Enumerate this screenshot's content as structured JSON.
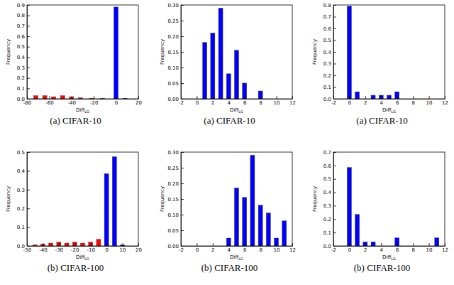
{
  "chart_data": [
    {
      "type": "bar",
      "title": "(a) CIFAR-10",
      "xlabel": "Diff",
      "xlabel_sub": "LG",
      "ylabel": "Frequency",
      "xlim": [
        -80,
        20
      ],
      "xticks": [
        -80,
        -60,
        -40,
        -20,
        0,
        20
      ],
      "ylim": [
        0,
        0.9
      ],
      "yticks": [
        {
          "value": 0,
          "label": "0.0"
        },
        {
          "value": 0.1,
          "label": "0.1"
        },
        {
          "value": 0.2,
          "label": "0.2"
        },
        {
          "value": 0.3,
          "label": "0.3"
        },
        {
          "value": 0.4,
          "label": "0.4"
        },
        {
          "value": 0.5,
          "label": "0.5"
        },
        {
          "value": 0.6,
          "label": "0.6"
        },
        {
          "value": 0.7,
          "label": "0.7"
        },
        {
          "value": 0.8,
          "label": "0.8"
        },
        {
          "value": 0.9,
          "label": "0.9"
        }
      ],
      "series": [
        {
          "color": "#ff0000",
          "x": [
            -72,
            -64,
            -56,
            -48,
            -40,
            -32,
            -22,
            -12
          ],
          "values": [
            0.03,
            0.03,
            0.02,
            0.03,
            0.02,
            0.01,
            0.005,
            0.005
          ]
        },
        {
          "color": "#0000ff",
          "x": [
            0,
            8
          ],
          "values": [
            0.88,
            0.005
          ]
        }
      ]
    },
    {
      "type": "bar",
      "title": "(a) CIFAR-10",
      "xlabel": "Diff",
      "xlabel_sub": "LG",
      "ylabel": "Frequency",
      "xlim": [
        -2,
        12
      ],
      "xticks": [
        -2,
        0,
        2,
        4,
        6,
        8,
        10,
        12
      ],
      "ylim": [
        0,
        0.3
      ],
      "yticks": [
        {
          "value": 0,
          "label": "0.00"
        },
        {
          "value": 0.05,
          "label": "0.05"
        },
        {
          "value": 0.1,
          "label": "0.10"
        },
        {
          "value": 0.15,
          "label": "0.15"
        },
        {
          "value": 0.2,
          "label": "0.20"
        },
        {
          "value": 0.25,
          "label": "0.25"
        },
        {
          "value": 0.3,
          "label": "0.30"
        }
      ],
      "series": [
        {
          "color": "#0000ff",
          "x": [
            1,
            2,
            3,
            4,
            5,
            6,
            8
          ],
          "values": [
            0.18,
            0.21,
            0.29,
            0.08,
            0.155,
            0.05,
            0.025
          ]
        }
      ]
    },
    {
      "type": "bar",
      "title": "(a) CIFAR-10",
      "xlabel": "Diff",
      "xlabel_sub": "LG",
      "ylabel": "Frequency",
      "xlim": [
        -2,
        12
      ],
      "xticks": [
        -2,
        0,
        2,
        4,
        6,
        8,
        10,
        12
      ],
      "ylim": [
        0,
        0.8
      ],
      "yticks": [
        {
          "value": 0,
          "label": "0.0"
        },
        {
          "value": 0.1,
          "label": "0.1"
        },
        {
          "value": 0.2,
          "label": "0.2"
        },
        {
          "value": 0.3,
          "label": "0.3"
        },
        {
          "value": 0.4,
          "label": "0.4"
        },
        {
          "value": 0.5,
          "label": "0.5"
        },
        {
          "value": 0.6,
          "label": "0.6"
        },
        {
          "value": 0.7,
          "label": "0.7"
        },
        {
          "value": 0.8,
          "label": "0.8"
        }
      ],
      "series": [
        {
          "color": "#0000ff",
          "x": [
            0,
            1,
            3,
            4,
            5,
            6
          ],
          "values": [
            0.79,
            0.06,
            0.03,
            0.03,
            0.03,
            0.06
          ]
        }
      ]
    },
    {
      "type": "bar",
      "title": "(b) CIFAR-100",
      "xlabel": "Diff",
      "xlabel_sub": "LG",
      "ylabel": "Frequency",
      "xlim": [
        -50,
        20
      ],
      "xticks": [
        -50,
        -40,
        -30,
        -20,
        -10,
        0,
        10,
        20
      ],
      "ylim": [
        0,
        0.5
      ],
      "yticks": [
        {
          "value": 0,
          "label": "0.0"
        },
        {
          "value": 0.1,
          "label": "0.1"
        },
        {
          "value": 0.2,
          "label": "0.2"
        },
        {
          "value": 0.3,
          "label": "0.3"
        },
        {
          "value": 0.4,
          "label": "0.4"
        },
        {
          "value": 0.5,
          "label": "0.5"
        }
      ],
      "series": [
        {
          "color": "#ff0000",
          "x": [
            -45,
            -40,
            -35,
            -30,
            -25,
            -20,
            -15,
            -10,
            -5
          ],
          "values": [
            0.005,
            0.01,
            0.015,
            0.02,
            0.015,
            0.02,
            0.015,
            0.02,
            0.035
          ]
        },
        {
          "color": "#0000ff",
          "x": [
            0,
            5,
            10
          ],
          "values": [
            0.385,
            0.475,
            0.005
          ]
        }
      ]
    },
    {
      "type": "bar",
      "title": "(b) CIFAR-100",
      "xlabel": "Diff",
      "xlabel_sub": "LG",
      "ylabel": "Frequency",
      "xlim": [
        -2,
        12
      ],
      "xticks": [
        -2,
        0,
        2,
        4,
        6,
        8,
        10,
        12
      ],
      "ylim": [
        0,
        0.3
      ],
      "yticks": [
        {
          "value": 0,
          "label": "0.00"
        },
        {
          "value": 0.05,
          "label": "0.05"
        },
        {
          "value": 0.1,
          "label": "0.10"
        },
        {
          "value": 0.15,
          "label": "0.15"
        },
        {
          "value": 0.2,
          "label": "0.20"
        },
        {
          "value": 0.25,
          "label": "0.25"
        },
        {
          "value": 0.3,
          "label": "0.30"
        }
      ],
      "series": [
        {
          "color": "#0000ff",
          "x": [
            4,
            5,
            6,
            7,
            8,
            9,
            10,
            11
          ],
          "values": [
            0.025,
            0.185,
            0.155,
            0.29,
            0.13,
            0.105,
            0.025,
            0.08
          ]
        }
      ]
    },
    {
      "type": "bar",
      "title": "(b) CIFAR-100",
      "xlabel": "Diff",
      "xlabel_sub": "LG",
      "ylabel": "Frequency",
      "xlim": [
        -2,
        12
      ],
      "xticks": [
        -2,
        0,
        2,
        4,
        6,
        8,
        10,
        12
      ],
      "ylim": [
        0,
        0.7
      ],
      "yticks": [
        {
          "value": 0,
          "label": "0.0"
        },
        {
          "value": 0.1,
          "label": "0.1"
        },
        {
          "value": 0.2,
          "label": "0.2"
        },
        {
          "value": 0.3,
          "label": "0.3"
        },
        {
          "value": 0.4,
          "label": "0.4"
        },
        {
          "value": 0.5,
          "label": "0.5"
        },
        {
          "value": 0.6,
          "label": "0.6"
        },
        {
          "value": 0.7,
          "label": "0.7"
        }
      ],
      "series": [
        {
          "color": "#0000ff",
          "x": [
            0,
            1,
            2,
            3,
            6,
            11
          ],
          "values": [
            0.585,
            0.235,
            0.03,
            0.03,
            0.06,
            0.06
          ]
        }
      ]
    }
  ]
}
